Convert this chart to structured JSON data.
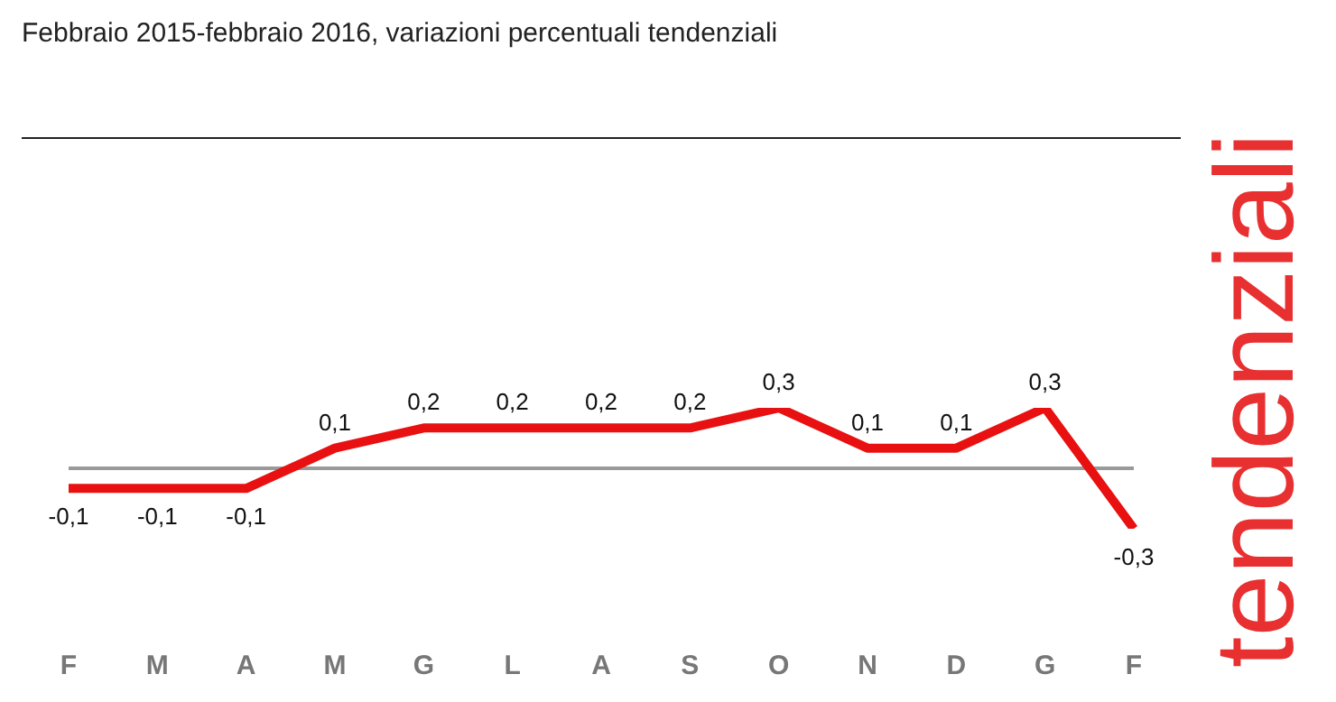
{
  "chart_data": {
    "type": "line",
    "title": "Febbraio 2015-febbraio 2016, variazioni percentuali tendenziali",
    "categories": [
      "F",
      "M",
      "A",
      "M",
      "G",
      "L",
      "A",
      "S",
      "O",
      "N",
      "D",
      "G",
      "F"
    ],
    "series": [
      {
        "color": "#e81010",
        "values": [
          -0.1,
          -0.1,
          -0.1,
          0.1,
          0.2,
          0.2,
          0.2,
          0.2,
          0.3,
          0.1,
          0.1,
          0.3,
          -0.3
        ],
        "value_labels": [
          "-0,1",
          "-0,1",
          "-0,1",
          "0,1",
          "0,2",
          "0,2",
          "0,2",
          "0,2",
          "0,3",
          "0,1",
          "0,1",
          "0,3",
          "-0,3"
        ]
      }
    ],
    "ref_lines": [
      {
        "axis": "y",
        "value": 0,
        "color": "#999999"
      }
    ],
    "annotations": [
      "tendenziali"
    ],
    "tick_labels": "x",
    "grid": false,
    "legend": false,
    "marker": "none",
    "line_style": "solid"
  }
}
